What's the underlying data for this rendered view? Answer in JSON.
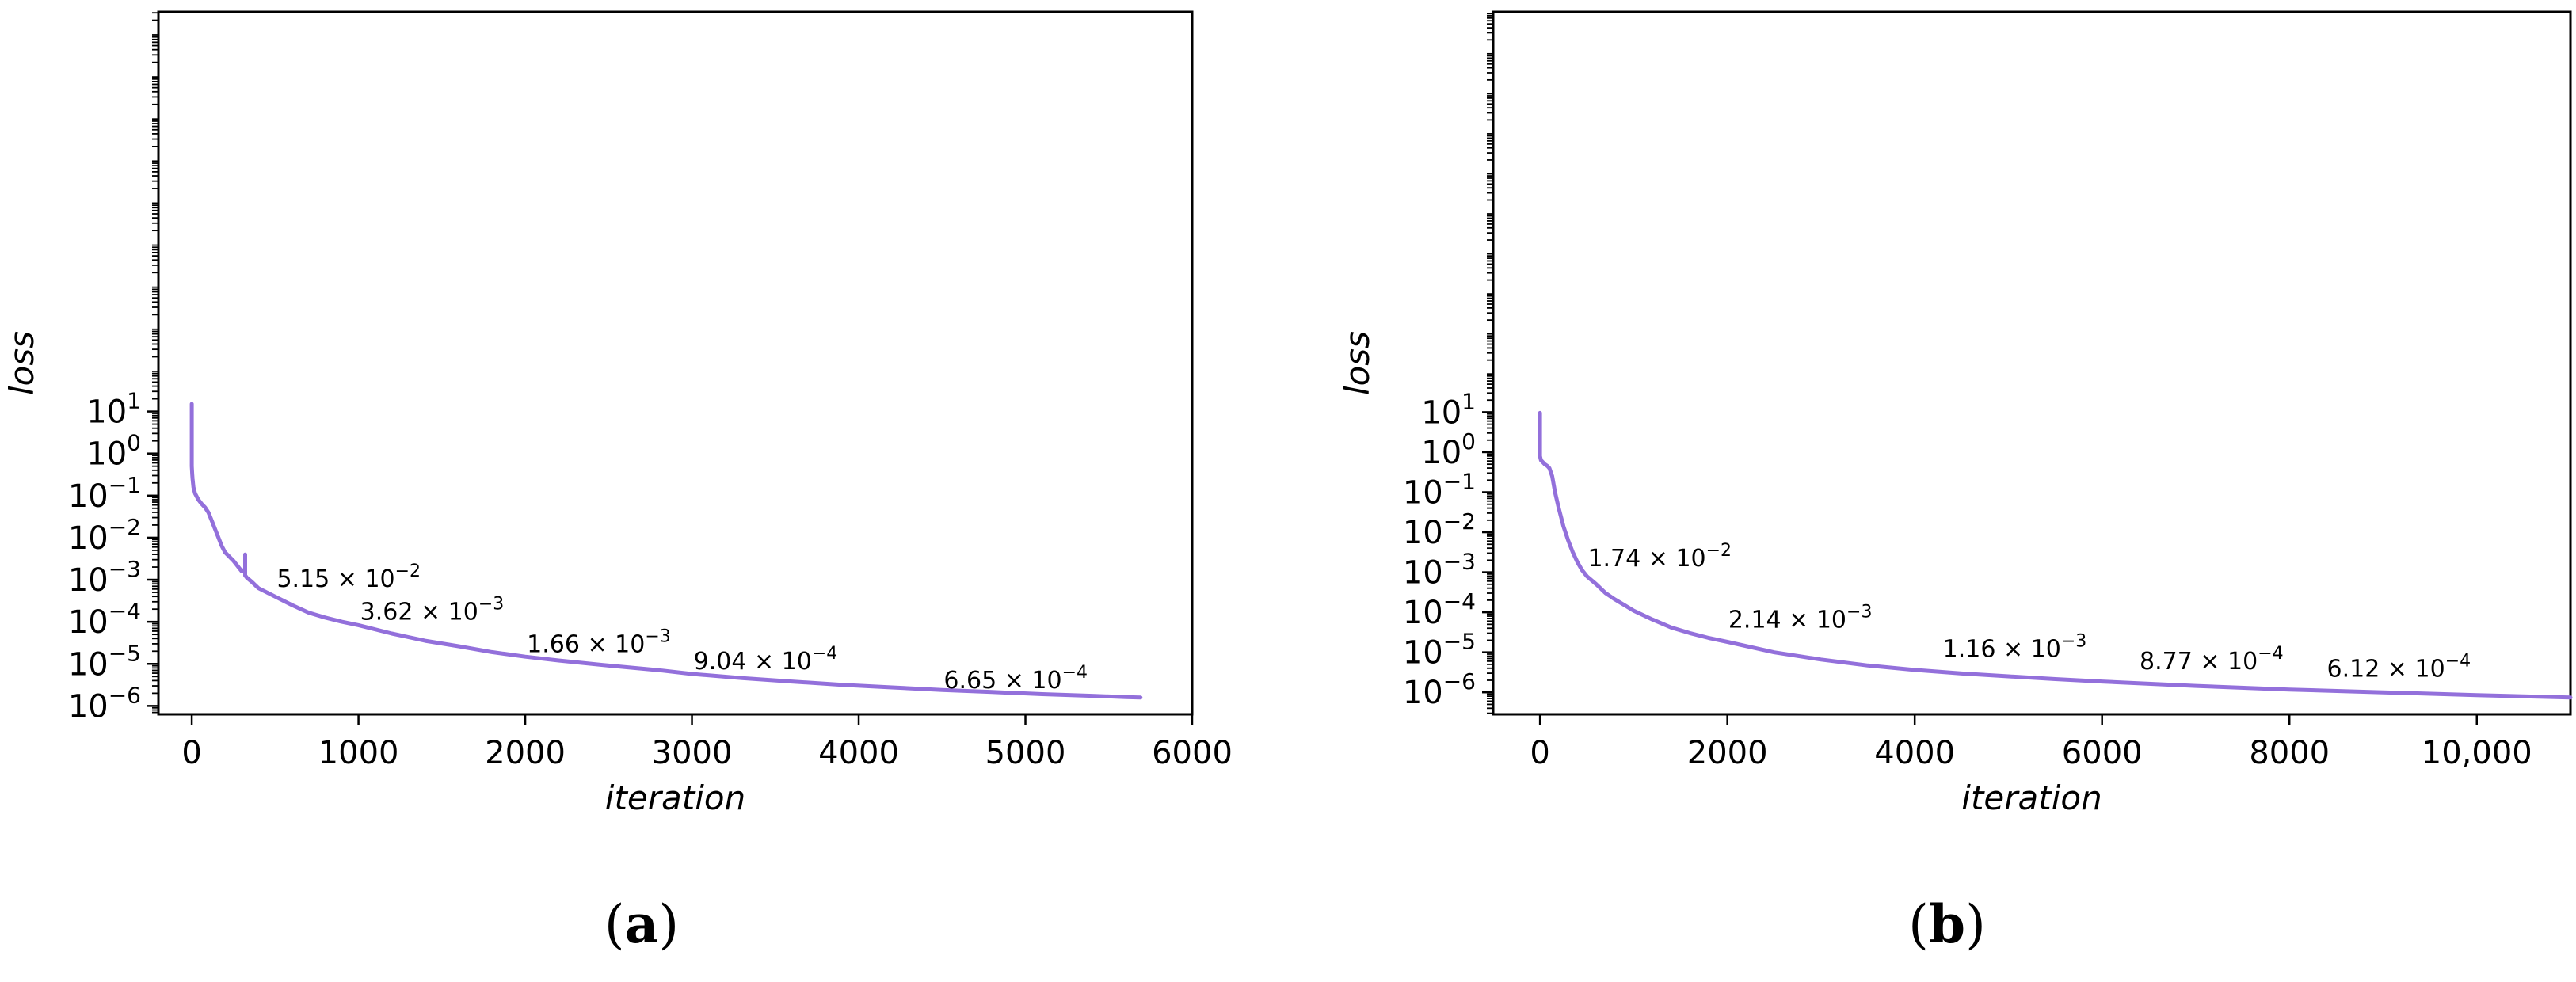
{
  "chart_data": [
    {
      "type": "line",
      "panel": "(a)",
      "xlabel": "iteration",
      "ylabel": "loss",
      "xlim": [
        -200,
        6000
      ],
      "ylim_log10": [
        -6.2,
        10.5
      ],
      "yscale": "log",
      "grid": false,
      "x_ticks": [
        "0",
        "1000",
        "2000",
        "3000",
        "4000",
        "5000",
        "6000"
      ],
      "y_ticks": [
        -6,
        -5,
        -4,
        -3,
        -2,
        -1,
        0,
        1
      ],
      "color": "#9370DB",
      "series": [
        {
          "x": [
            0,
            0,
            3,
            5,
            10,
            20,
            40,
            60,
            80,
            100,
            120,
            150,
            180,
            200,
            250,
            300,
            320,
            320,
            320,
            330,
            360,
            400,
            500,
            600,
            700,
            800,
            900,
            1000,
            1200,
            1400,
            1600,
            1800,
            2000,
            2200,
            2500,
            2800,
            3000,
            3300,
            3600,
            3900,
            4200,
            4500,
            4800,
            5100,
            5400,
            5600,
            5690
          ],
          "y_log10": [
            1.18,
            -0.3,
            -0.5,
            -0.6,
            -0.8,
            -0.95,
            -1.1,
            -1.2,
            -1.28,
            -1.4,
            -1.6,
            -1.9,
            -2.2,
            -2.35,
            -2.55,
            -2.8,
            -2.75,
            -2.4,
            -2.9,
            -2.95,
            -3.05,
            -3.2,
            -3.4,
            -3.6,
            -3.78,
            -3.9,
            -4.0,
            -4.08,
            -4.28,
            -4.45,
            -4.58,
            -4.72,
            -4.83,
            -4.92,
            -5.04,
            -5.15,
            -5.24,
            -5.34,
            -5.42,
            -5.5,
            -5.56,
            -5.62,
            -5.67,
            -5.72,
            -5.76,
            -5.79,
            -5.8
          ]
        }
      ],
      "annotations": [
        {
          "mantissa": "5.15",
          "exponent": "−2",
          "x": 510,
          "y_log10": -3.17
        },
        {
          "mantissa": "3.62",
          "exponent": "−3",
          "x": 1010,
          "y_log10": -3.95
        },
        {
          "mantissa": "1.66",
          "exponent": "−3",
          "x": 2010,
          "y_log10": -4.72
        },
        {
          "mantissa": "9.04",
          "exponent": "−4",
          "x": 3010,
          "y_log10": -5.13
        },
        {
          "mantissa": "6.65",
          "exponent": "−4",
          "x": 4510,
          "y_log10": -5.58
        }
      ]
    },
    {
      "type": "line",
      "panel": "(b)",
      "xlabel": "iteration",
      "ylabel": "loss",
      "xlim": [
        -500,
        11000
      ],
      "ylim_log10": [
        -6.55,
        11.0
      ],
      "yscale": "log",
      "grid": false,
      "x_ticks": [
        "0",
        "2000",
        "4000",
        "6000",
        "8000",
        "10,000"
      ],
      "y_ticks": [
        -6,
        -5,
        -4,
        -3,
        -2,
        -1,
        0,
        1
      ],
      "color": "#9370DB",
      "series": [
        {
          "x": [
            0,
            0,
            10,
            30,
            50,
            80,
            100,
            130,
            160,
            200,
            250,
            300,
            350,
            400,
            450,
            500,
            600,
            700,
            800,
            900,
            1000,
            1200,
            1400,
            1600,
            1800,
            2000,
            2500,
            3000,
            3500,
            4000,
            4500,
            5000,
            5500,
            6000,
            7000,
            8000,
            9000,
            10000,
            11000
          ],
          "y_log10": [
            0.98,
            -0.1,
            -0.2,
            -0.25,
            -0.3,
            -0.35,
            -0.4,
            -0.6,
            -1.0,
            -1.4,
            -1.85,
            -2.2,
            -2.5,
            -2.75,
            -2.95,
            -3.1,
            -3.3,
            -3.52,
            -3.68,
            -3.82,
            -3.96,
            -4.18,
            -4.38,
            -4.52,
            -4.64,
            -4.74,
            -5.0,
            -5.18,
            -5.33,
            -5.44,
            -5.53,
            -5.6,
            -5.67,
            -5.73,
            -5.84,
            -5.93,
            -6.0,
            -6.07,
            -6.13
          ]
        }
      ],
      "annotations": [
        {
          "mantissa": "1.74",
          "exponent": "−2",
          "x": 510,
          "y_log10": -2.85
        },
        {
          "mantissa": "2.14",
          "exponent": "−3",
          "x": 2010,
          "y_log10": -4.38
        },
        {
          "mantissa": "1.16",
          "exponent": "−3",
          "x": 4300,
          "y_log10": -5.12
        },
        {
          "mantissa": "8.77",
          "exponent": "−4",
          "x": 6400,
          "y_log10": -5.42
        },
        {
          "mantissa": "6.12",
          "exponent": "−4",
          "x": 8400,
          "y_log10": -5.61
        }
      ]
    }
  ]
}
